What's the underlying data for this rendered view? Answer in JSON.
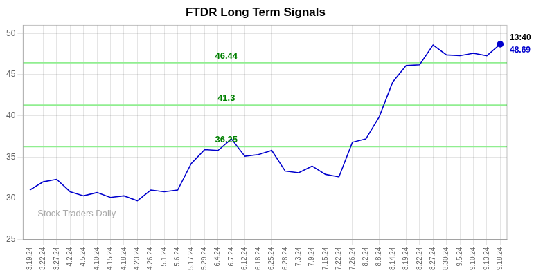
{
  "chart_data": {
    "type": "line",
    "title": "FTDR Long Term Signals",
    "categories": [
      "3.19.24",
      "3.22.24",
      "3.27.24",
      "4.2.24",
      "4.5.24",
      "4.10.24",
      "4.15.24",
      "4.18.24",
      "4.23.24",
      "4.26.24",
      "5.1.24",
      "5.6.24",
      "5.17.24",
      "5.29.24",
      "6.4.24",
      "6.7.24",
      "6.12.24",
      "6.18.24",
      "6.25.24",
      "6.28.24",
      "7.3.24",
      "7.9.24",
      "7.15.24",
      "7.22.24",
      "7.26.24",
      "8.2.24",
      "8.8.24",
      "8.14.24",
      "8.19.24",
      "8.22.24",
      "8.27.24",
      "8.30.24",
      "9.5.24",
      "9.10.24",
      "9.13.24",
      "9.18.24"
    ],
    "values": [
      31.0,
      32.0,
      32.3,
      30.8,
      30.3,
      30.7,
      30.1,
      30.3,
      29.7,
      31.0,
      30.8,
      31.0,
      34.2,
      35.9,
      35.8,
      37.2,
      35.1,
      35.3,
      35.8,
      33.3,
      33.1,
      33.9,
      32.9,
      32.6,
      36.8,
      37.2,
      39.9,
      44.1,
      46.1,
      46.2,
      48.6,
      47.4,
      47.3,
      47.6,
      47.3,
      48.69
    ],
    "color": "#0000CD",
    "hlines": [
      {
        "value": 36.25,
        "label": "36.25",
        "color": "#90EE90",
        "label_color": "#008000"
      },
      {
        "value": 41.3,
        "label": "41.3",
        "color": "#90EE90",
        "label_color": "#008000"
      },
      {
        "value": 46.44,
        "label": "46.44",
        "color": "#90EE90",
        "label_color": "#008000"
      }
    ],
    "annotations": [
      {
        "text": "13:40",
        "x": "9.18.24",
        "color": "#000000"
      },
      {
        "text": "48.69",
        "x": "9.18.24",
        "y": 48.69,
        "color": "#0000CD"
      },
      {
        "text": "Stock Traders Daily",
        "color": "#aaaaaa"
      }
    ],
    "ylim": [
      25,
      51
    ],
    "yticks": [
      25,
      30,
      35,
      40,
      45,
      50
    ],
    "grid": true
  }
}
